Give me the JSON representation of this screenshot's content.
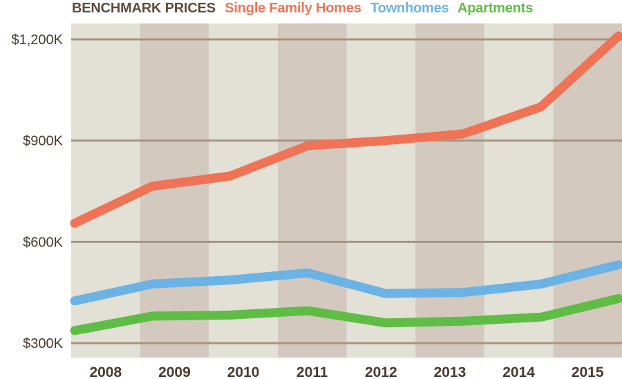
{
  "chart_data": {
    "type": "line",
    "title": "BENCHMARK PRICES",
    "categories": [
      "2008",
      "2009",
      "2010",
      "2011",
      "2012",
      "2013",
      "2014",
      "2015"
    ],
    "yticks": [
      300000,
      600000,
      900000,
      1200000
    ],
    "ytick_labels": [
      "$300K",
      "$600K",
      "$900K",
      "$1,200K"
    ],
    "ylim": [
      260000,
      1300000
    ],
    "grid": true,
    "legend_position": "top",
    "series": [
      {
        "name": "Single Family Homes",
        "color": "#f07355",
        "values": [
          655000,
          765000,
          795000,
          885000,
          900000,
          920000,
          1000000,
          1210000
        ]
      },
      {
        "name": "Townhomes",
        "color": "#6bb2e5",
        "values": [
          425000,
          475000,
          487000,
          508000,
          447000,
          450000,
          475000,
          532000
        ]
      },
      {
        "name": "Apartments",
        "color": "#5fbd46",
        "values": [
          337000,
          380000,
          383000,
          396000,
          360000,
          365000,
          377000,
          432000
        ]
      }
    ]
  },
  "colors": {
    "band_light": "#e3e0d6",
    "band_dark": "#d3c9bf",
    "gridline": "#a49585",
    "title": "#5e4b3c",
    "axis_text": "#4a3a2e"
  }
}
